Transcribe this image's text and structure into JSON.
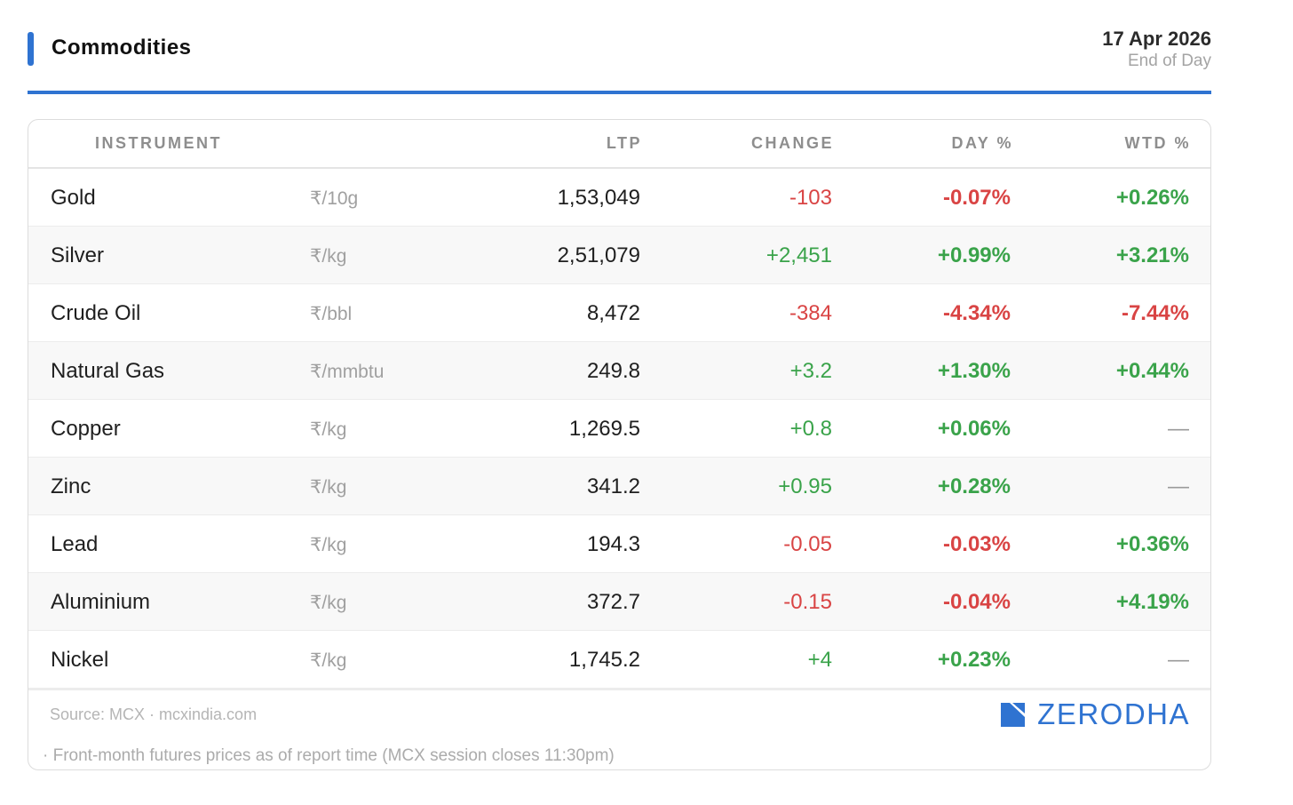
{
  "header": {
    "title": "Commodities",
    "date": "17 Apr 2026",
    "session": "End of Day"
  },
  "colors": {
    "accent": "#2f73d1",
    "positive": "#3aa34a",
    "negative": "#d94444"
  },
  "table": {
    "columns": {
      "instrument": "INSTRUMENT",
      "ltp": "LTP",
      "change": "CHANGE",
      "day": "DAY %",
      "wtd": "WTD %"
    },
    "rows": [
      {
        "name": "Gold",
        "unit": "₹/10g",
        "ltp": "1,53,049",
        "change": "-103",
        "change_dir": "neg",
        "day": "-0.07%",
        "day_dir": "neg",
        "wtd": "+0.26%",
        "wtd_dir": "pos"
      },
      {
        "name": "Silver",
        "unit": "₹/kg",
        "ltp": "2,51,079",
        "change": "+2,451",
        "change_dir": "pos",
        "day": "+0.99%",
        "day_dir": "pos",
        "wtd": "+3.21%",
        "wtd_dir": "pos"
      },
      {
        "name": "Crude Oil",
        "unit": "₹/bbl",
        "ltp": "8,472",
        "change": "-384",
        "change_dir": "neg",
        "day": "-4.34%",
        "day_dir": "neg",
        "wtd": "-7.44%",
        "wtd_dir": "neg"
      },
      {
        "name": "Natural Gas",
        "unit": "₹/mmbtu",
        "ltp": "249.8",
        "change": "+3.2",
        "change_dir": "pos",
        "day": "+1.30%",
        "day_dir": "pos",
        "wtd": "+0.44%",
        "wtd_dir": "pos"
      },
      {
        "name": "Copper",
        "unit": "₹/kg",
        "ltp": "1,269.5",
        "change": "+0.8",
        "change_dir": "pos",
        "day": "+0.06%",
        "day_dir": "pos",
        "wtd": "—",
        "wtd_dir": "flat"
      },
      {
        "name": "Zinc",
        "unit": "₹/kg",
        "ltp": "341.2",
        "change": "+0.95",
        "change_dir": "pos",
        "day": "+0.28%",
        "day_dir": "pos",
        "wtd": "—",
        "wtd_dir": "flat"
      },
      {
        "name": "Lead",
        "unit": "₹/kg",
        "ltp": "194.3",
        "change": "-0.05",
        "change_dir": "neg",
        "day": "-0.03%",
        "day_dir": "neg",
        "wtd": "+0.36%",
        "wtd_dir": "pos"
      },
      {
        "name": "Aluminium",
        "unit": "₹/kg",
        "ltp": "372.7",
        "change": "-0.15",
        "change_dir": "neg",
        "day": "-0.04%",
        "day_dir": "neg",
        "wtd": "+4.19%",
        "wtd_dir": "pos"
      },
      {
        "name": "Nickel",
        "unit": "₹/kg",
        "ltp": "1,745.2",
        "change": "+4",
        "change_dir": "pos",
        "day": "+0.23%",
        "day_dir": "pos",
        "wtd": "—",
        "wtd_dir": "flat"
      }
    ]
  },
  "footer": {
    "source": "Source: MCX · mcxindia.com",
    "note": "· Front-month futures prices as of report time (MCX session closes 11:30pm)",
    "brand": "ZERODHA",
    "brand_icon": "zerodha-logo-icon"
  }
}
